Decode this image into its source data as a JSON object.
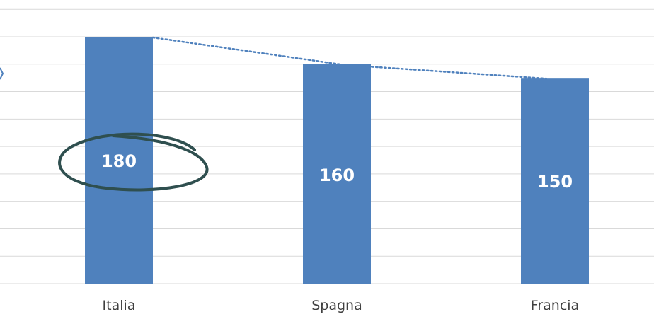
{
  "chart_data": {
    "type": "bar",
    "categories": [
      "Italia",
      "Spagna",
      "Francia"
    ],
    "values": [
      180,
      160,
      150
    ],
    "data_labels": [
      "180",
      "160",
      "150"
    ],
    "ylim": [
      0,
      180
    ],
    "grid": true,
    "trendline": {
      "style": "dotted",
      "connects": "bar-tops"
    },
    "annotation": {
      "type": "hand-drawn-ellipse",
      "target": "Italia"
    },
    "colors": {
      "bar": "#4f81bd",
      "grid": "#d9d9d9",
      "trendline": "#4f81bd",
      "annotation": "#2f4f4f",
      "category_text": "#404040",
      "data_label_text": "#ffffff"
    }
  }
}
